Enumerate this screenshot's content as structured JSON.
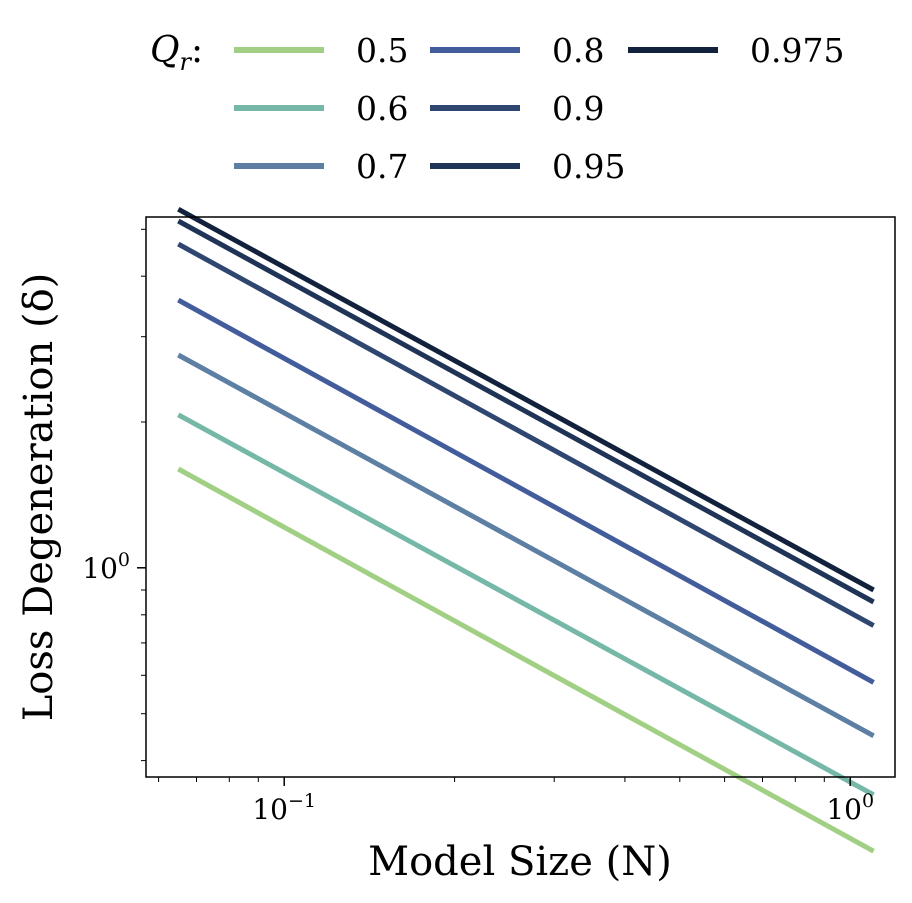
{
  "chart_data": {
    "type": "line",
    "title": "",
    "xlabel": "Model Size (N)",
    "ylabel": "Loss Degeneration (δ)",
    "xscale": "log",
    "yscale": "log",
    "xlim": [
      0.057,
      1.2
    ],
    "ylim": [
      0.37,
      5.3
    ],
    "x": [
      0.065,
      1.1
    ],
    "x_ticks": [
      {
        "value": 0.1,
        "base": "10",
        "exp": "−1"
      },
      {
        "value": 1.0,
        "base": "10",
        "exp": "0"
      }
    ],
    "y_ticks": [
      {
        "value": 1.0,
        "base": "10",
        "exp": "0"
      }
    ],
    "legend": {
      "title": "Q_r:",
      "title_main": "Q",
      "title_sub": "r",
      "title_colon": ":",
      "placement": "top",
      "columns": 3
    },
    "series": [
      {
        "name": "0.5",
        "color": "#a1d084",
        "values": [
          1.6,
          0.26
        ]
      },
      {
        "name": "0.6",
        "color": "#76b8a8",
        "values": [
          2.07,
          0.34
        ]
      },
      {
        "name": "0.7",
        "color": "#5c7fa3",
        "values": [
          2.75,
          0.45
        ]
      },
      {
        "name": "0.8",
        "color": "#435d9c",
        "values": [
          3.57,
          0.58
        ]
      },
      {
        "name": "0.9",
        "color": "#2f4670",
        "values": [
          4.66,
          0.76
        ]
      },
      {
        "name": "0.95",
        "color": "#1f3456",
        "values": [
          5.2,
          0.85
        ]
      },
      {
        "name": "0.975",
        "color": "#12223d",
        "values": [
          5.5,
          0.9
        ]
      }
    ]
  }
}
